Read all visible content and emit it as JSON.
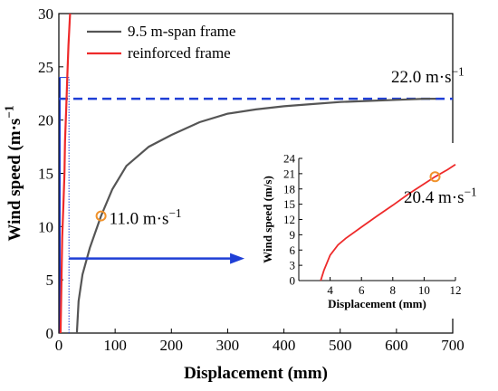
{
  "chart_data": [
    {
      "type": "line",
      "xlabel": "Displacement (mm)",
      "ylabel": "Wind speed (m·s",
      "ylabel_sup": "−1",
      "xlim": [
        0,
        700
      ],
      "ylim": [
        0,
        30
      ],
      "xticks": [
        0,
        100,
        200,
        300,
        400,
        500,
        600,
        700
      ],
      "yticks": [
        0,
        5,
        10,
        15,
        20,
        25,
        30
      ],
      "grid": false,
      "legend_position": "top-left",
      "series": [
        {
          "name": "9.5 m-span frame",
          "color": "#555555",
          "points": [
            [
              32,
              0
            ],
            [
              35,
              3
            ],
            [
              42,
              5.5
            ],
            [
              55,
              8
            ],
            [
              75,
              11
            ],
            [
              95,
              13.5
            ],
            [
              120,
              15.7
            ],
            [
              160,
              17.5
            ],
            [
              200,
              18.6
            ],
            [
              250,
              19.8
            ],
            [
              300,
              20.6
            ],
            [
              350,
              21.0
            ],
            [
              400,
              21.3
            ],
            [
              450,
              21.5
            ],
            [
              500,
              21.7
            ],
            [
              550,
              21.8
            ],
            [
              600,
              21.9
            ],
            [
              650,
              22.0
            ],
            [
              670,
              22.0
            ]
          ]
        },
        {
          "name": "reinforced frame",
          "color": "#ee2a2a",
          "points": [
            [
              3,
              0
            ],
            [
              4,
              3
            ],
            [
              5,
              6
            ],
            [
              6,
              9
            ],
            [
              8,
              12
            ],
            [
              10,
              15
            ],
            [
              11,
              18
            ],
            [
              13,
              21
            ],
            [
              15,
              24
            ],
            [
              17,
              27
            ],
            [
              20,
              30
            ]
          ]
        }
      ],
      "reference_lines": [
        {
          "axis": "y",
          "value": 22.0,
          "color": "#1f3fd6"
        },
        {
          "axis": "x",
          "value": 18,
          "color": "#1f3fd6"
        }
      ],
      "annotations": [
        {
          "x": 75,
          "y": 11.0,
          "label": "11.0 m·s",
          "sup": "−1"
        },
        {
          "x": 660,
          "y": 22.0,
          "label": "22.0 m·s",
          "sup": "−1"
        }
      ],
      "arrow": {
        "from": [
          18,
          7
        ],
        "to": [
          330,
          7
        ],
        "color": "#1f3fd6"
      }
    },
    {
      "type": "line",
      "inset": true,
      "xlabel": "Displacement (mm)",
      "ylabel": "Wind speed (m/s)",
      "xlim": [
        2,
        12
      ],
      "ylim": [
        0,
        24
      ],
      "xticks": [
        4,
        6,
        8,
        10,
        12
      ],
      "yticks": [
        0,
        3,
        6,
        9,
        12,
        15,
        18,
        21,
        24
      ],
      "series": [
        {
          "name": "reinforced frame",
          "color": "#ee2a2a",
          "points": [
            [
              3.4,
              0
            ],
            [
              3.6,
              2
            ],
            [
              4,
              5
            ],
            [
              4.5,
              7
            ],
            [
              5,
              8.3
            ],
            [
              6,
              10.5
            ],
            [
              7,
              12.7
            ],
            [
              8,
              14.8
            ],
            [
              9,
              17
            ],
            [
              10,
              19
            ],
            [
              10.7,
              20.4
            ],
            [
              11.5,
              21.8
            ],
            [
              12,
              22.8
            ]
          ]
        }
      ],
      "annotations": [
        {
          "x": 10.7,
          "y": 20.4,
          "label": "20.4 m·s",
          "sup": "−1"
        }
      ]
    }
  ]
}
